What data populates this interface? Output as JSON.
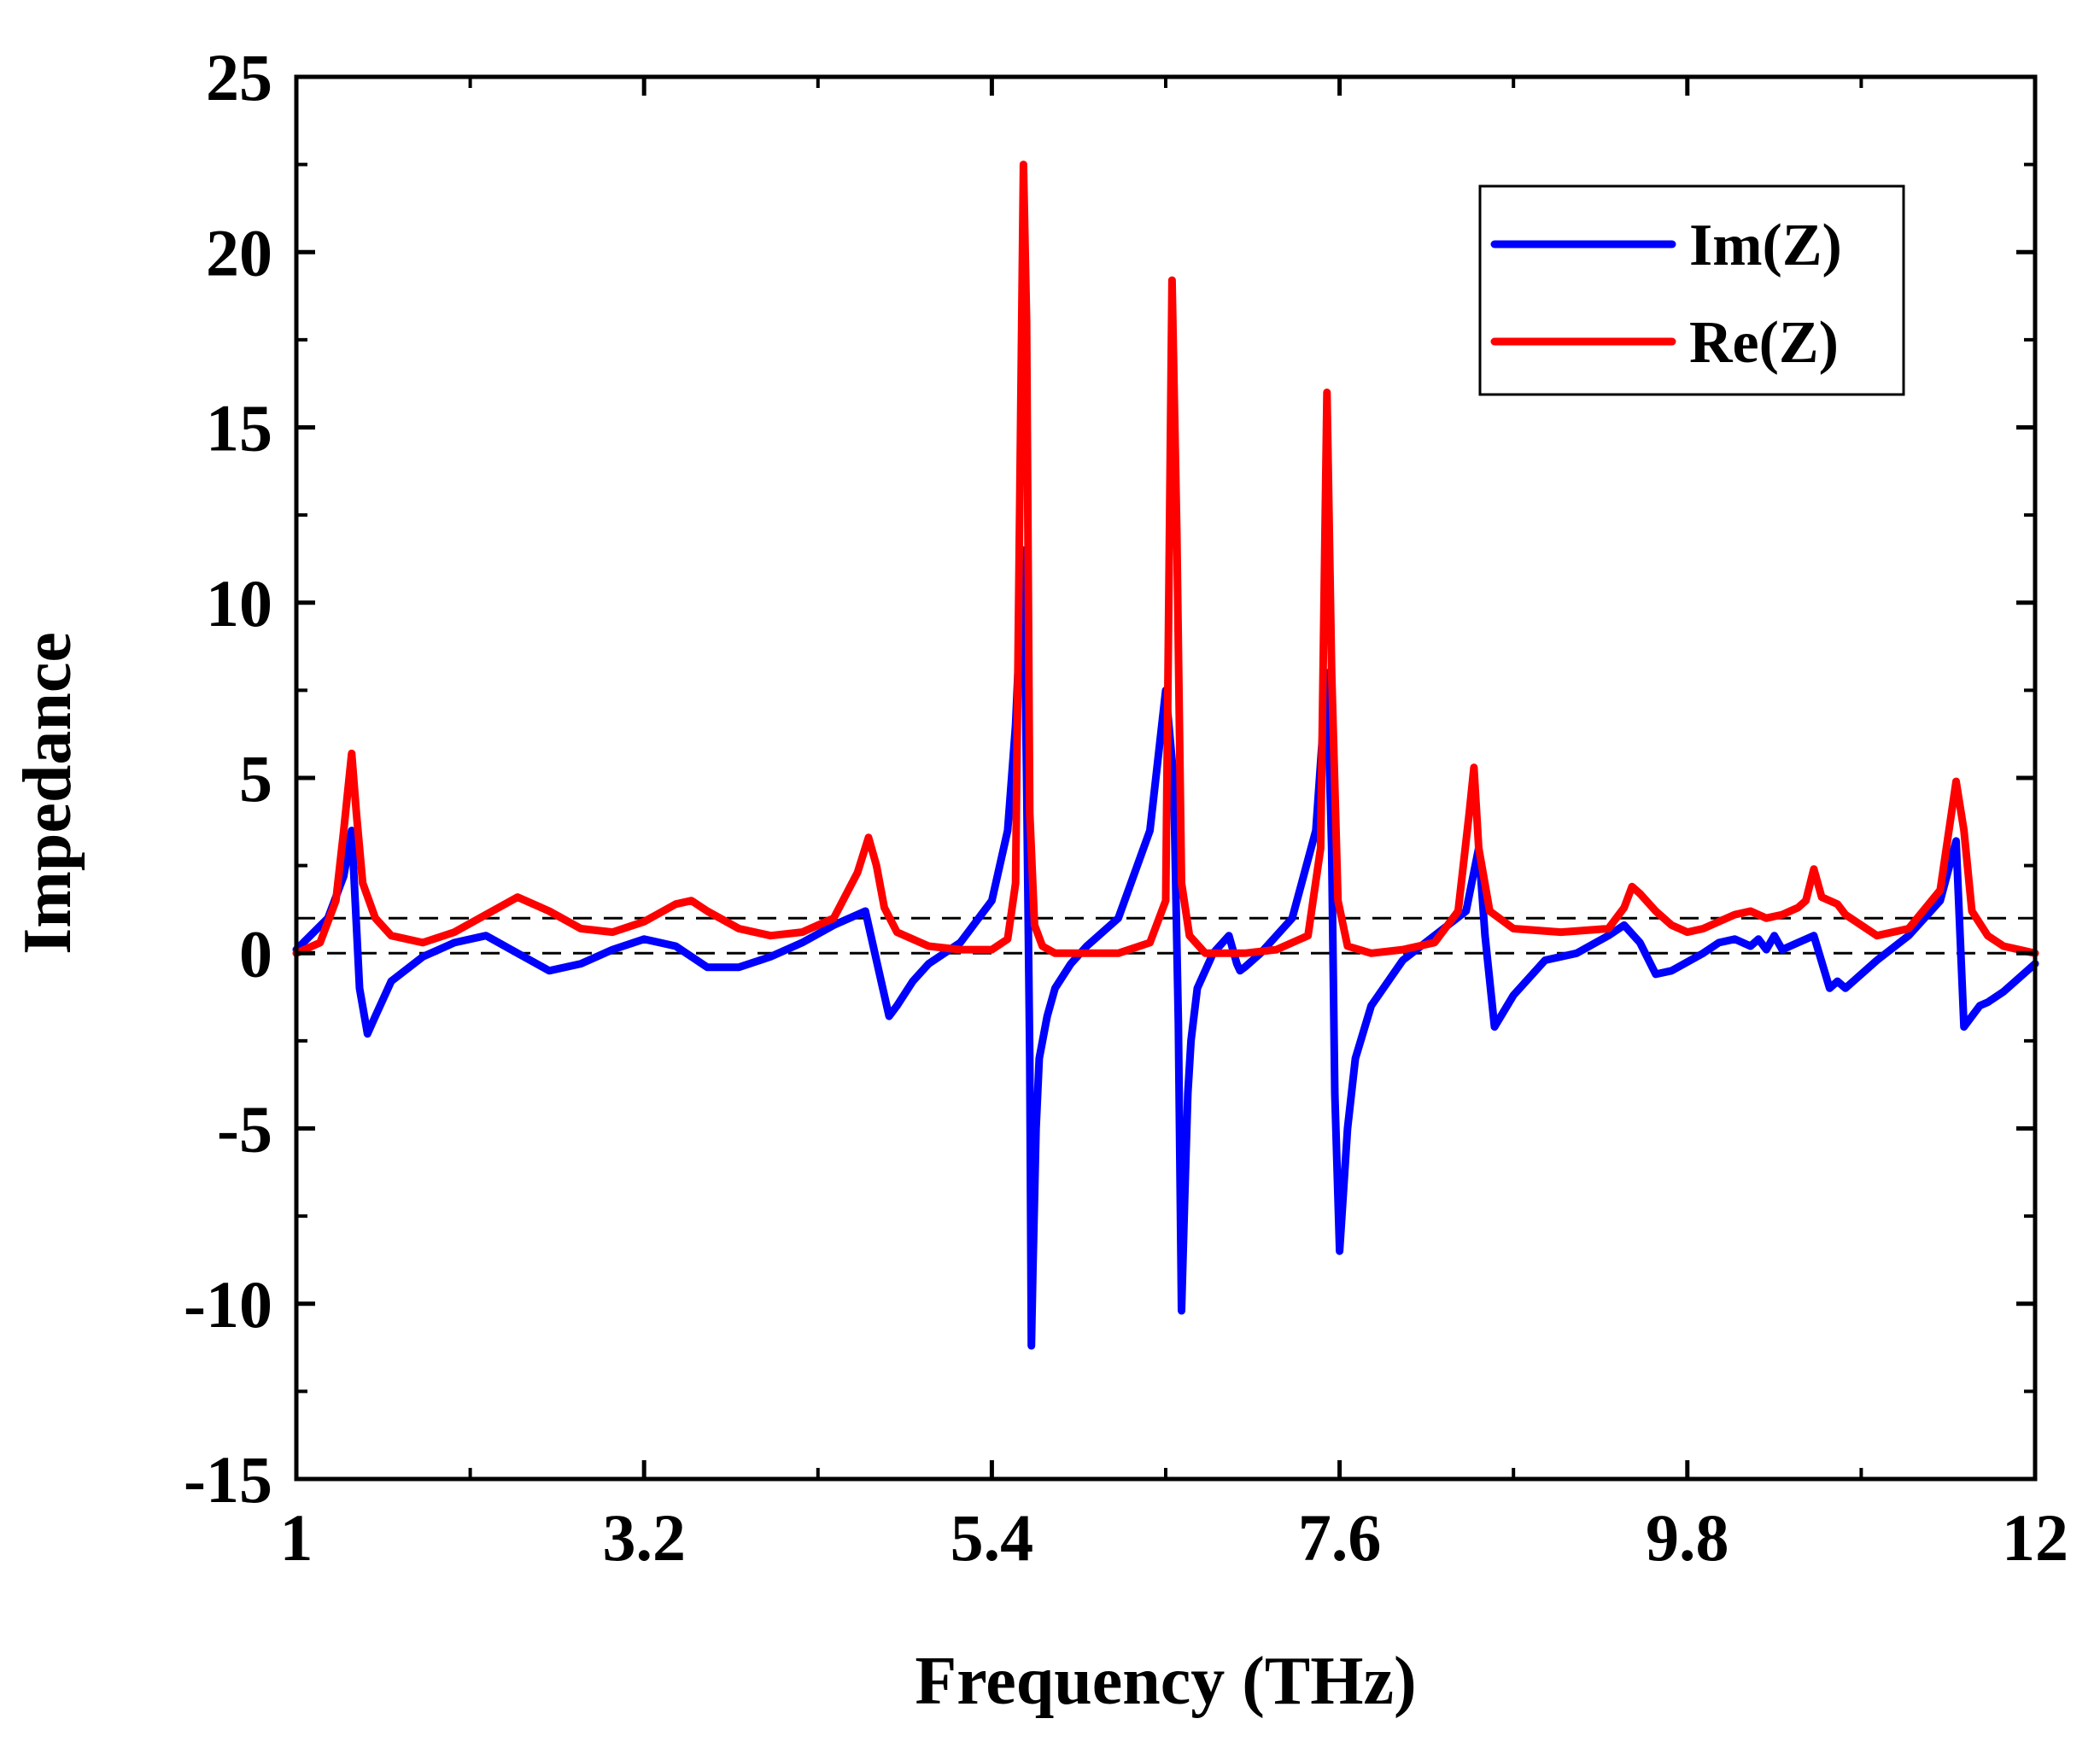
{
  "chart_data": {
    "type": "line",
    "title": "",
    "xlabel": "Frequency (THz)",
    "ylabel": "Impedance",
    "xlim": [
      1,
      12
    ],
    "ylim": [
      -15,
      25
    ],
    "xticks": [
      1,
      3.2,
      5.4,
      7.6,
      9.8,
      12
    ],
    "xtick_labels": [
      "1",
      "3.2",
      "5.4",
      "7.6",
      "9.8",
      "12"
    ],
    "yticks": [
      -15,
      -10,
      -5,
      0,
      5,
      10,
      15,
      20,
      25
    ],
    "ytick_labels": [
      "-15",
      "-10",
      "-5",
      "0",
      "5",
      "10",
      "15",
      "20",
      "25"
    ],
    "grid": false,
    "legend_position": "top-right",
    "reference_lines": [
      {
        "y": 0,
        "style": "dashed",
        "color": "#000000"
      },
      {
        "y": 1,
        "style": "dashed",
        "color": "#000000"
      }
    ],
    "series": [
      {
        "name": "Im(Z)",
        "color": "#0000ff",
        "x": [
          1.0,
          1.2,
          1.3,
          1.35,
          1.4,
          1.45,
          1.5,
          1.6,
          1.8,
          2.0,
          2.2,
          2.4,
          2.6,
          2.8,
          3.0,
          3.2,
          3.4,
          3.6,
          3.8,
          4.0,
          4.2,
          4.4,
          4.6,
          4.7,
          4.75,
          4.8,
          4.9,
          5.0,
          5.2,
          5.4,
          5.5,
          5.55,
          5.6,
          5.62,
          5.64,
          5.65,
          5.66,
          5.68,
          5.7,
          5.75,
          5.8,
          5.9,
          6.0,
          6.2,
          6.4,
          6.5,
          6.55,
          6.58,
          6.6,
          6.62,
          6.64,
          6.66,
          6.7,
          6.8,
          6.9,
          6.95,
          6.97,
          7.0,
          7.1,
          7.3,
          7.45,
          7.52,
          7.55,
          7.57,
          7.6,
          7.65,
          7.7,
          7.8,
          8.0,
          8.2,
          8.4,
          8.48,
          8.52,
          8.58,
          8.7,
          8.9,
          9.1,
          9.3,
          9.4,
          9.5,
          9.6,
          9.7,
          9.9,
          10.0,
          10.1,
          10.2,
          10.25,
          10.3,
          10.35,
          10.4,
          10.5,
          10.6,
          10.7,
          10.75,
          10.8,
          10.9,
          11.0,
          11.2,
          11.4,
          11.5,
          11.55,
          11.6,
          11.65,
          11.7,
          11.8,
          12.0
        ],
        "values": [
          0.1,
          1.0,
          2.2,
          3.5,
          -1.0,
          -2.3,
          -1.8,
          -0.8,
          -0.1,
          0.3,
          0.5,
          0.0,
          -0.5,
          -0.3,
          0.1,
          0.4,
          0.2,
          -0.4,
          -0.4,
          -0.1,
          0.3,
          0.8,
          1.2,
          -0.8,
          -1.8,
          -1.5,
          -0.8,
          -0.3,
          0.3,
          1.5,
          3.5,
          6.5,
          11.5,
          5.0,
          -3.0,
          -11.2,
          -9.0,
          -5.0,
          -3.0,
          -1.8,
          -1.0,
          -0.3,
          0.2,
          1.0,
          3.5,
          7.5,
          5.0,
          -2.0,
          -10.2,
          -7.0,
          -4.0,
          -2.5,
          -1.0,
          0.0,
          0.5,
          -0.3,
          -0.5,
          -0.4,
          0.0,
          1.0,
          3.5,
          8.0,
          3.0,
          -4.0,
          -8.5,
          -5.0,
          -3.0,
          -1.5,
          -0.2,
          0.5,
          1.2,
          3.0,
          0.5,
          -2.1,
          -1.2,
          -0.2,
          0.0,
          0.5,
          0.8,
          0.3,
          -0.6,
          -0.5,
          0.0,
          0.3,
          0.4,
          0.2,
          0.4,
          0.1,
          0.5,
          0.1,
          0.3,
          0.5,
          -1.0,
          -0.8,
          -1.0,
          -0.6,
          -0.2,
          0.5,
          1.5,
          3.2,
          -2.1,
          -1.8,
          -1.5,
          -1.4,
          -1.1,
          -0.3
        ]
      },
      {
        "name": "Re(Z)",
        "color": "#ff0000",
        "x": [
          1.0,
          1.15,
          1.25,
          1.3,
          1.35,
          1.38,
          1.42,
          1.5,
          1.6,
          1.8,
          2.0,
          2.2,
          2.4,
          2.6,
          2.8,
          3.0,
          3.2,
          3.4,
          3.5,
          3.6,
          3.8,
          4.0,
          4.2,
          4.4,
          4.55,
          4.62,
          4.67,
          4.72,
          4.8,
          5.0,
          5.2,
          5.4,
          5.5,
          5.55,
          5.6,
          5.62,
          5.64,
          5.67,
          5.72,
          5.8,
          6.0,
          6.2,
          6.4,
          6.5,
          6.54,
          6.57,
          6.6,
          6.65,
          6.75,
          7.0,
          7.2,
          7.4,
          7.48,
          7.52,
          7.55,
          7.59,
          7.65,
          7.8,
          8.0,
          8.2,
          8.35,
          8.42,
          8.45,
          8.48,
          8.55,
          8.7,
          9.0,
          9.3,
          9.4,
          9.45,
          9.5,
          9.6,
          9.7,
          9.8,
          9.9,
          10.0,
          10.1,
          10.2,
          10.3,
          10.4,
          10.5,
          10.55,
          10.6,
          10.65,
          10.7,
          10.75,
          10.8,
          11.0,
          11.2,
          11.4,
          11.5,
          11.55,
          11.6,
          11.7,
          11.8,
          12.0
        ],
        "values": [
          0.0,
          0.3,
          1.5,
          3.5,
          5.7,
          4.0,
          2.0,
          1.0,
          0.5,
          0.3,
          0.6,
          1.1,
          1.6,
          1.2,
          0.7,
          0.6,
          0.9,
          1.4,
          1.5,
          1.2,
          0.7,
          0.5,
          0.6,
          1.0,
          2.3,
          3.3,
          2.5,
          1.3,
          0.6,
          0.2,
          0.1,
          0.1,
          0.4,
          2.0,
          22.5,
          18.0,
          4.0,
          0.8,
          0.2,
          0.0,
          0.0,
          0.0,
          0.3,
          1.5,
          19.2,
          12.0,
          2.0,
          0.5,
          0.0,
          0.0,
          0.1,
          0.5,
          3.0,
          16.0,
          8.0,
          1.5,
          0.2,
          0.0,
          0.1,
          0.3,
          1.2,
          4.0,
          5.3,
          3.0,
          1.2,
          0.7,
          0.6,
          0.7,
          1.3,
          1.9,
          1.7,
          1.2,
          0.8,
          0.6,
          0.7,
          0.9,
          1.1,
          1.2,
          1.0,
          1.1,
          1.3,
          1.5,
          2.4,
          1.6,
          1.5,
          1.4,
          1.1,
          0.5,
          0.7,
          1.8,
          4.9,
          3.5,
          1.2,
          0.5,
          0.2,
          0.0
        ]
      }
    ]
  }
}
